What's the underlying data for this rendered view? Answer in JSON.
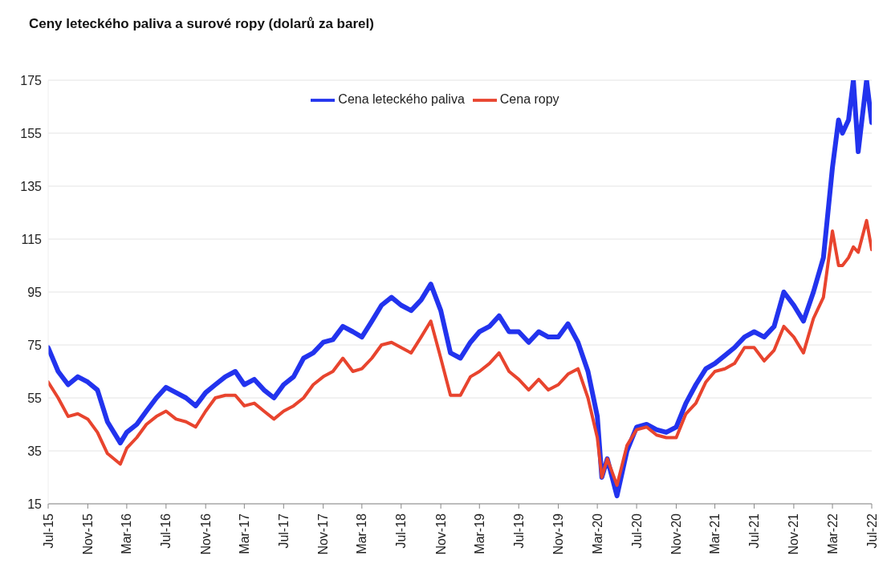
{
  "chart_data": {
    "type": "line",
    "title": "Ceny leteckého paliva a surové ropy (dolarů za barel)",
    "x": [
      "2015-07",
      "2015-08",
      "2015-09",
      "2015-10",
      "2015-11",
      "2015-12",
      "2016-01",
      "2016-02-10",
      "2016-03",
      "2016-04",
      "2016-05",
      "2016-06",
      "2016-07",
      "2016-08",
      "2016-09",
      "2016-10",
      "2016-11",
      "2016-12",
      "2017-01",
      "2017-02",
      "2017-03",
      "2017-04",
      "2017-05",
      "2017-06",
      "2017-07",
      "2017-08",
      "2017-09",
      "2017-10",
      "2017-11",
      "2017-12",
      "2018-01",
      "2018-02",
      "2018-03",
      "2018-04",
      "2018-05",
      "2018-06",
      "2018-07",
      "2018-08",
      "2018-09",
      "2018-10",
      "2018-11",
      "2018-12",
      "2019-01",
      "2019-02",
      "2019-03",
      "2019-04",
      "2019-05",
      "2019-06",
      "2019-07",
      "2019-08",
      "2019-09",
      "2019-10",
      "2019-11",
      "2019-12",
      "2020-01",
      "2020-02",
      "2020-03",
      "2020-03-15",
      "2020-04",
      "2020-05",
      "2020-06",
      "2020-07",
      "2020-08",
      "2020-09",
      "2020-10",
      "2020-11",
      "2020-12",
      "2021-01",
      "2021-02",
      "2021-03",
      "2021-04",
      "2021-05",
      "2021-06",
      "2021-07",
      "2021-08",
      "2021-09",
      "2021-10",
      "2021-11",
      "2021-12",
      "2022-01",
      "2022-02",
      "2022-03",
      "2022-03-20",
      "2022-04",
      "2022-04-20",
      "2022-05-05",
      "2022-05-20",
      "2022-06-15",
      "2022-07"
    ],
    "series": [
      {
        "name": "Cena leteckého paliva",
        "color": "#2233ee",
        "values": [
          74,
          65,
          60,
          63,
          61,
          58,
          46,
          38,
          42,
          45,
          50,
          55,
          59,
          57,
          55,
          52,
          57,
          60,
          63,
          65,
          60,
          62,
          58,
          55,
          60,
          63,
          70,
          72,
          76,
          77,
          82,
          80,
          78,
          84,
          90,
          93,
          90,
          88,
          92,
          98,
          88,
          72,
          70,
          76,
          80,
          82,
          86,
          80,
          80,
          76,
          80,
          78,
          78,
          83,
          76,
          65,
          48,
          25,
          32,
          18,
          35,
          44,
          45,
          43,
          42,
          44,
          53,
          60,
          66,
          68,
          71,
          74,
          78,
          80,
          78,
          82,
          95,
          90,
          84,
          95,
          108,
          142,
          160,
          155,
          160,
          175,
          148,
          175,
          159
        ]
      },
      {
        "name": "Cena ropy",
        "color": "#e8442e",
        "values": [
          61,
          55,
          48,
          49,
          47,
          42,
          34,
          30,
          36,
          40,
          45,
          48,
          50,
          47,
          46,
          44,
          50,
          55,
          56,
          56,
          52,
          53,
          50,
          47,
          50,
          52,
          55,
          60,
          63,
          65,
          70,
          65,
          66,
          70,
          75,
          76,
          74,
          72,
          78,
          84,
          70,
          56,
          56,
          63,
          65,
          68,
          72,
          65,
          62,
          58,
          62,
          58,
          60,
          64,
          66,
          55,
          40,
          25,
          32,
          22,
          37,
          43,
          44,
          41,
          40,
          40,
          49,
          53,
          61,
          65,
          66,
          68,
          74,
          74,
          69,
          73,
          82,
          78,
          72,
          85,
          93,
          118,
          105,
          105,
          108,
          112,
          110,
          122,
          111
        ]
      }
    ],
    "xlim": [
      "2015-07",
      "2022-07"
    ],
    "xticks": [
      {
        "value": "2015-07",
        "label": "Jul-15"
      },
      {
        "value": "2015-11",
        "label": "Nov-15"
      },
      {
        "value": "2016-03",
        "label": "Mar-16"
      },
      {
        "value": "2016-07",
        "label": "Jul-16"
      },
      {
        "value": "2016-11",
        "label": "Nov-16"
      },
      {
        "value": "2017-03",
        "label": "Mar-17"
      },
      {
        "value": "2017-07",
        "label": "Jul-17"
      },
      {
        "value": "2017-11",
        "label": "Nov-17"
      },
      {
        "value": "2018-03",
        "label": "Mar-18"
      },
      {
        "value": "2018-07",
        "label": "Jul-18"
      },
      {
        "value": "2018-11",
        "label": "Nov-18"
      },
      {
        "value": "2019-03",
        "label": "Mar-19"
      },
      {
        "value": "2019-07",
        "label": "Jul-19"
      },
      {
        "value": "2019-11",
        "label": "Nov-19"
      },
      {
        "value": "2020-03",
        "label": "Mar-20"
      },
      {
        "value": "2020-07",
        "label": "Jul-20"
      },
      {
        "value": "2020-11",
        "label": "Nov-20"
      },
      {
        "value": "2021-03",
        "label": "Mar-21"
      },
      {
        "value": "2021-07",
        "label": "Jul-21"
      },
      {
        "value": "2021-11",
        "label": "Nov-21"
      },
      {
        "value": "2022-03",
        "label": "Mar-22"
      },
      {
        "value": "2022-07",
        "label": "Jul-22"
      }
    ],
    "ylim": [
      15,
      175
    ],
    "yticks": [
      15,
      35,
      55,
      75,
      95,
      115,
      135,
      155,
      175
    ],
    "grid": "y",
    "legend": "top",
    "marker": "none",
    "line_style": "solid"
  }
}
